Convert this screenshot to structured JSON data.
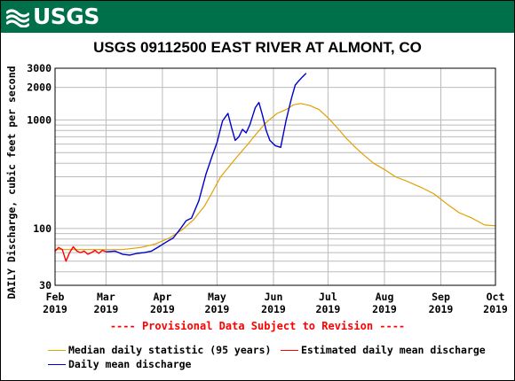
{
  "banner": {
    "logo_text": "USGS",
    "background_color": "#00704a"
  },
  "chart_data": {
    "type": "line",
    "title": "USGS 09112500 EAST RIVER AT ALMONT, CO",
    "ylabel": "DAILY Discharge, cubic feet per second",
    "xlabel": "",
    "yscale": "log",
    "ylim": [
      30,
      3000
    ],
    "xlim": [
      "2019-02-01",
      "2019-10-01"
    ],
    "grid": true,
    "legend_position": "bottom",
    "y_ticks": [
      {
        "value": 30,
        "label": "30"
      },
      {
        "value": 100,
        "label": "100"
      },
      {
        "value": 1000,
        "label": "1000"
      },
      {
        "value": 2000,
        "label": "2000"
      },
      {
        "value": 3000,
        "label": "3000"
      }
    ],
    "x_ticks": [
      {
        "date": "2019-02-01",
        "month": "Feb",
        "year": "2019"
      },
      {
        "date": "2019-03-01",
        "month": "Mar",
        "year": "2019"
      },
      {
        "date": "2019-04-01",
        "month": "Apr",
        "year": "2019"
      },
      {
        "date": "2019-05-01",
        "month": "May",
        "year": "2019"
      },
      {
        "date": "2019-06-01",
        "month": "Jun",
        "year": "2019"
      },
      {
        "date": "2019-07-01",
        "month": "Jul",
        "year": "2019"
      },
      {
        "date": "2019-08-01",
        "month": "Aug",
        "year": "2019"
      },
      {
        "date": "2019-09-01",
        "month": "Sep",
        "year": "2019"
      },
      {
        "date": "2019-10-01",
        "month": "Oct",
        "year": "2019"
      }
    ],
    "annotation": "---- Provisional Data Subject to Revision ----",
    "annotation_color": "#ff0000",
    "series": [
      {
        "name": "Median daily statistic (95 years)",
        "color": "#e0a000",
        "points": [
          [
            "2019-02-01",
            64
          ],
          [
            "2019-02-10",
            64
          ],
          [
            "2019-02-20",
            64
          ],
          [
            "2019-03-01",
            64
          ],
          [
            "2019-03-10",
            64
          ],
          [
            "2019-03-20",
            67
          ],
          [
            "2019-03-28",
            72
          ],
          [
            "2019-04-05",
            82
          ],
          [
            "2019-04-12",
            98
          ],
          [
            "2019-04-18",
            120
          ],
          [
            "2019-04-24",
            160
          ],
          [
            "2019-04-28",
            210
          ],
          [
            "2019-05-03",
            300
          ],
          [
            "2019-05-08",
            380
          ],
          [
            "2019-05-13",
            480
          ],
          [
            "2019-05-18",
            600
          ],
          [
            "2019-05-23",
            760
          ],
          [
            "2019-05-28",
            950
          ],
          [
            "2019-06-03",
            1150
          ],
          [
            "2019-06-08",
            1250
          ],
          [
            "2019-06-12",
            1380
          ],
          [
            "2019-06-16",
            1420
          ],
          [
            "2019-06-21",
            1360
          ],
          [
            "2019-06-26",
            1250
          ],
          [
            "2019-07-01",
            1050
          ],
          [
            "2019-07-06",
            850
          ],
          [
            "2019-07-11",
            680
          ],
          [
            "2019-07-16",
            560
          ],
          [
            "2019-07-21",
            470
          ],
          [
            "2019-07-26",
            400
          ],
          [
            "2019-08-01",
            350
          ],
          [
            "2019-08-07",
            300
          ],
          [
            "2019-08-14",
            270
          ],
          [
            "2019-08-21",
            240
          ],
          [
            "2019-08-28",
            210
          ],
          [
            "2019-09-04",
            170
          ],
          [
            "2019-09-11",
            140
          ],
          [
            "2019-09-18",
            125
          ],
          [
            "2019-09-25",
            108
          ],
          [
            "2019-10-01",
            106
          ]
        ]
      },
      {
        "name": "Estimated daily mean discharge",
        "color": "#ff0000",
        "points": [
          [
            "2019-02-01",
            62
          ],
          [
            "2019-02-03",
            67
          ],
          [
            "2019-02-05",
            64
          ],
          [
            "2019-02-07",
            50
          ],
          [
            "2019-02-09",
            60
          ],
          [
            "2019-02-11",
            68
          ],
          [
            "2019-02-13",
            62
          ],
          [
            "2019-02-15",
            60
          ],
          [
            "2019-02-17",
            62
          ],
          [
            "2019-02-19",
            58
          ],
          [
            "2019-02-21",
            60
          ],
          [
            "2019-02-23",
            63
          ],
          [
            "2019-02-25",
            59
          ],
          [
            "2019-02-27",
            63
          ],
          [
            "2019-03-01",
            61
          ]
        ]
      },
      {
        "name": "Daily mean discharge",
        "color": "#0000cc",
        "points": [
          [
            "2019-03-01",
            61
          ],
          [
            "2019-03-06",
            62
          ],
          [
            "2019-03-10",
            58
          ],
          [
            "2019-03-14",
            57
          ],
          [
            "2019-03-18",
            59
          ],
          [
            "2019-03-22",
            60
          ],
          [
            "2019-03-26",
            62
          ],
          [
            "2019-03-30",
            68
          ],
          [
            "2019-04-03",
            75
          ],
          [
            "2019-04-07",
            82
          ],
          [
            "2019-04-11",
            100
          ],
          [
            "2019-04-14",
            118
          ],
          [
            "2019-04-17",
            125
          ],
          [
            "2019-04-21",
            180
          ],
          [
            "2019-04-25",
            320
          ],
          [
            "2019-04-28",
            450
          ],
          [
            "2019-05-01",
            620
          ],
          [
            "2019-05-04",
            980
          ],
          [
            "2019-05-07",
            1150
          ],
          [
            "2019-05-09",
            850
          ],
          [
            "2019-05-11",
            650
          ],
          [
            "2019-05-13",
            700
          ],
          [
            "2019-05-15",
            820
          ],
          [
            "2019-05-17",
            760
          ],
          [
            "2019-05-19",
            900
          ],
          [
            "2019-05-22",
            1300
          ],
          [
            "2019-05-24",
            1450
          ],
          [
            "2019-05-26",
            1100
          ],
          [
            "2019-05-28",
            800
          ],
          [
            "2019-05-30",
            650
          ],
          [
            "2019-06-02",
            580
          ],
          [
            "2019-06-05",
            560
          ],
          [
            "2019-06-08",
            1000
          ],
          [
            "2019-06-11",
            1600
          ],
          [
            "2019-06-13",
            2100
          ],
          [
            "2019-06-15",
            2300
          ],
          [
            "2019-06-17",
            2500
          ],
          [
            "2019-06-19",
            2700
          ]
        ]
      }
    ]
  }
}
